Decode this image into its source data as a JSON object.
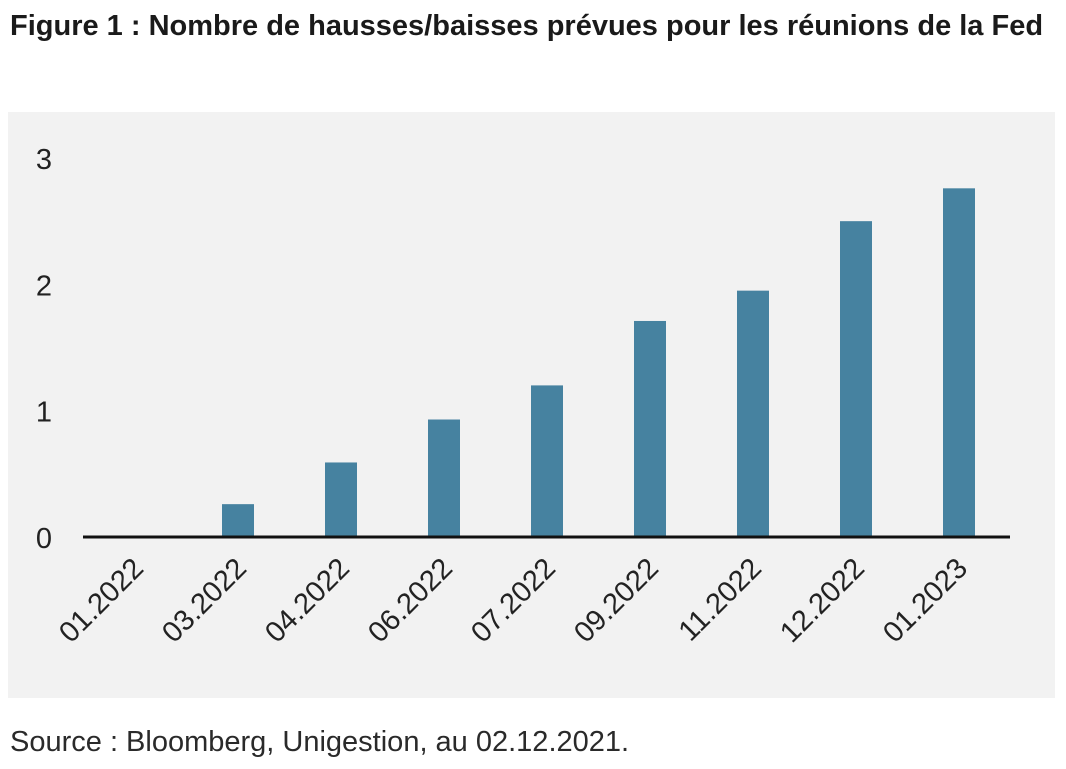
{
  "figure": {
    "title": "Figure 1 : Nombre de hausses/baisses prévues pour les réunions de la Fed",
    "source": "Source : Bloomberg, Unigestion, au 02.12.2021."
  },
  "colors": {
    "bar": "#4682a0",
    "panel": "#f2f2f2",
    "axis": "#111111"
  },
  "chart_data": {
    "type": "bar",
    "title": "",
    "xlabel": "",
    "ylabel": "",
    "categories": [
      "01.2022",
      "03.2022",
      "04.2022",
      "06.2022",
      "07.2022",
      "09.2022",
      "11.2022",
      "12.2022",
      "01.2023"
    ],
    "values": [
      0,
      0.26,
      0.59,
      0.93,
      1.2,
      1.71,
      1.95,
      2.5,
      2.76
    ],
    "ylim": [
      0,
      3
    ],
    "yticks": [
      "0",
      "1",
      "2",
      "3"
    ],
    "grid": false,
    "legend": "none"
  }
}
